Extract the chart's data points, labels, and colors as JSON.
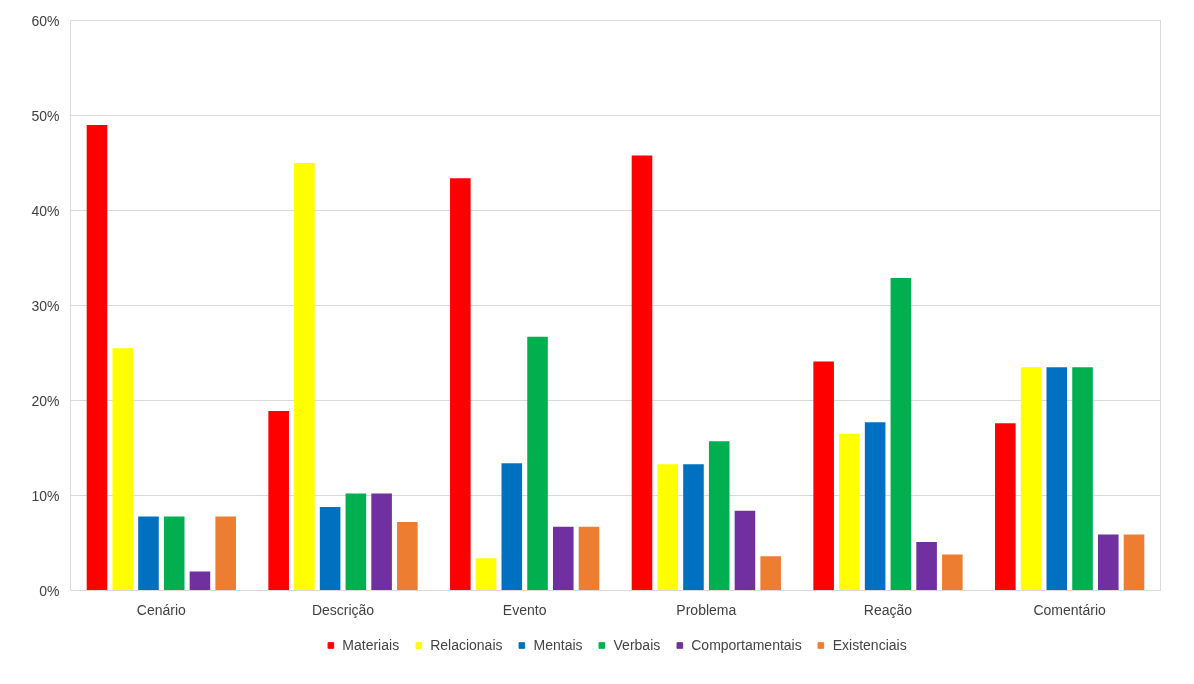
{
  "chart_data": {
    "type": "bar",
    "categories": [
      "Cenário",
      "Descrição",
      "Evento",
      "Problema",
      "Reação",
      "Comentário"
    ],
    "series": [
      {
        "name": "Materiais",
        "color": "#ff0000",
        "values": [
          49.0,
          18.9,
          43.4,
          45.8,
          24.1,
          17.6
        ]
      },
      {
        "name": "Relacionais",
        "color": "#ffff00",
        "values": [
          25.5,
          45.0,
          3.4,
          13.3,
          16.5,
          23.5
        ]
      },
      {
        "name": "Mentais",
        "color": "#0070c0",
        "values": [
          7.8,
          8.8,
          13.4,
          13.3,
          17.7,
          23.5
        ]
      },
      {
        "name": "Verbais",
        "color": "#00b050",
        "values": [
          7.8,
          10.2,
          26.7,
          15.7,
          32.9,
          23.5
        ]
      },
      {
        "name": "Comportamentais",
        "color": "#7030a0",
        "values": [
          2.0,
          10.2,
          6.7,
          8.4,
          5.1,
          5.9
        ]
      },
      {
        "name": "Existenciais",
        "color": "#ed7d31",
        "values": [
          7.8,
          7.2,
          6.7,
          3.6,
          3.8,
          5.9
        ]
      }
    ],
    "ylim": [
      0,
      60
    ],
    "yticks": [
      {
        "value": 0,
        "label": "0%"
      },
      {
        "value": 10,
        "label": "10%"
      },
      {
        "value": 20,
        "label": "20%"
      },
      {
        "value": 30,
        "label": "30%"
      },
      {
        "value": 40,
        "label": "40%"
      },
      {
        "value": 50,
        "label": "50%"
      },
      {
        "value": 60,
        "label": "60%"
      }
    ],
    "grid": "y",
    "legend": "bottom"
  }
}
